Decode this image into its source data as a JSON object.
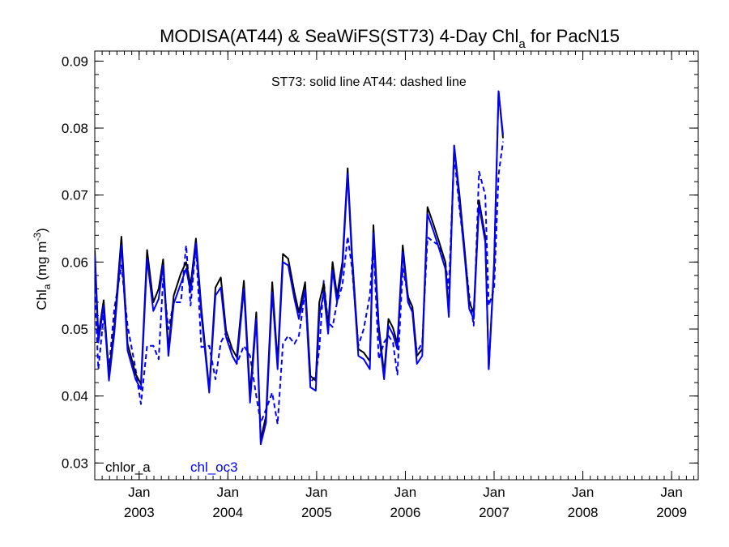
{
  "chart_data": {
    "type": "line",
    "title": "MODISA(AT44) & SeaWiFS(ST73) 4-Day Chl",
    "title_subscript": "a",
    "title_suffix": " for PacN15",
    "annotation": "ST73: solid line   AT44: dashed line",
    "ylabel": "Chl",
    "ylabel_subscript": "a",
    "ylabel_units": "(mg m",
    "ylabel_units_superscript": "-3",
    "ylabel_units_close": ")",
    "ylim": [
      0.0275,
      0.0915
    ],
    "xlim": [
      2002.5,
      2009.3
    ],
    "yticks": [
      {
        "value": 0.03,
        "label": "0.03"
      },
      {
        "value": 0.04,
        "label": "0.04"
      },
      {
        "value": 0.05,
        "label": "0.05"
      },
      {
        "value": 0.06,
        "label": "0.06"
      },
      {
        "value": 0.07,
        "label": "0.07"
      },
      {
        "value": 0.08,
        "label": "0.08"
      },
      {
        "value": 0.09,
        "label": "0.09"
      }
    ],
    "xticks": [
      {
        "value": 2003.0,
        "month": "Jan",
        "year": "2003"
      },
      {
        "value": 2004.0,
        "month": "Jan",
        "year": "2004"
      },
      {
        "value": 2005.0,
        "month": "Jan",
        "year": "2005"
      },
      {
        "value": 2006.0,
        "month": "Jan",
        "year": "2006"
      },
      {
        "value": 2007.0,
        "month": "Jan",
        "year": "2007"
      },
      {
        "value": 2008.0,
        "month": "Jan",
        "year": "2008"
      },
      {
        "value": 2009.0,
        "month": "Jan",
        "year": "2009"
      }
    ],
    "grid": false,
    "legend": [
      {
        "label": "chlor_a",
        "color": "#000000"
      },
      {
        "label": "chl_oc3",
        "color": "#0000ff"
      }
    ],
    "series": [
      {
        "name": "chlor_a",
        "sensor": "ST73",
        "color": "#000000",
        "dash": "solid",
        "points": [
          [
            2002.5,
            0.0618
          ],
          [
            2002.54,
            0.049
          ],
          [
            2002.6,
            0.0543
          ],
          [
            2002.66,
            0.0432
          ],
          [
            2002.72,
            0.0503
          ],
          [
            2002.8,
            0.0638
          ],
          [
            2002.87,
            0.0478
          ],
          [
            2002.96,
            0.0433
          ],
          [
            2003.02,
            0.0418
          ],
          [
            2003.09,
            0.0618
          ],
          [
            2003.16,
            0.054
          ],
          [
            2003.22,
            0.056
          ],
          [
            2003.27,
            0.0604
          ],
          [
            2003.33,
            0.047
          ],
          [
            2003.39,
            0.055
          ],
          [
            2003.47,
            0.0583
          ],
          [
            2003.53,
            0.06
          ],
          [
            2003.58,
            0.0565
          ],
          [
            2003.64,
            0.0635
          ],
          [
            2003.7,
            0.0532
          ],
          [
            2003.79,
            0.041
          ],
          [
            2003.86,
            0.0562
          ],
          [
            2003.92,
            0.0577
          ],
          [
            2003.98,
            0.0498
          ],
          [
            2004.05,
            0.047
          ],
          [
            2004.1,
            0.0458
          ],
          [
            2004.18,
            0.0572
          ],
          [
            2004.25,
            0.0402
          ],
          [
            2004.32,
            0.0525
          ],
          [
            2004.37,
            0.0335
          ],
          [
            2004.43,
            0.037
          ],
          [
            2004.5,
            0.057
          ],
          [
            2004.56,
            0.045
          ],
          [
            2004.62,
            0.0612
          ],
          [
            2004.68,
            0.0605
          ],
          [
            2004.75,
            0.0555
          ],
          [
            2004.8,
            0.0525
          ],
          [
            2004.87,
            0.057
          ],
          [
            2004.93,
            0.043
          ],
          [
            2004.99,
            0.0423
          ],
          [
            2005.03,
            0.054
          ],
          [
            2005.08,
            0.0568
          ],
          [
            2005.13,
            0.0505
          ],
          [
            2005.18,
            0.06
          ],
          [
            2005.23,
            0.055
          ],
          [
            2005.29,
            0.06
          ],
          [
            2005.35,
            0.074
          ],
          [
            2005.4,
            0.061
          ],
          [
            2005.47,
            0.047
          ],
          [
            2005.53,
            0.0465
          ],
          [
            2005.6,
            0.0452
          ],
          [
            2005.64,
            0.0655
          ],
          [
            2005.7,
            0.0505
          ],
          [
            2005.76,
            0.0433
          ],
          [
            2005.81,
            0.0515
          ],
          [
            2005.86,
            0.0502
          ],
          [
            2005.91,
            0.0478
          ],
          [
            2005.97,
            0.0625
          ],
          [
            2006.03,
            0.0548
          ],
          [
            2006.08,
            0.0533
          ],
          [
            2006.13,
            0.046
          ],
          [
            2006.19,
            0.047
          ],
          [
            2006.25,
            0.0682
          ],
          [
            2006.32,
            0.0655
          ],
          [
            2006.38,
            0.063
          ],
          [
            2006.45,
            0.06
          ],
          [
            2006.49,
            0.0525
          ],
          [
            2006.55,
            0.0774
          ],
          [
            2006.61,
            0.07
          ],
          [
            2006.67,
            0.0615
          ],
          [
            2006.72,
            0.054
          ],
          [
            2006.77,
            0.0525
          ],
          [
            2006.83,
            0.0692
          ],
          [
            2006.9,
            0.0638
          ],
          [
            2006.94,
            0.044
          ],
          [
            2007.0,
            0.06
          ],
          [
            2007.05,
            0.0855
          ],
          [
            2007.1,
            0.0785
          ]
        ]
      },
      {
        "name": "chl_oc3",
        "sensor": "ST73",
        "color": "#0000ff",
        "dash": "solid",
        "points": [
          [
            2002.5,
            0.061
          ],
          [
            2002.54,
            0.048
          ],
          [
            2002.6,
            0.0535
          ],
          [
            2002.66,
            0.0423
          ],
          [
            2002.72,
            0.0493
          ],
          [
            2002.8,
            0.0625
          ],
          [
            2002.87,
            0.0468
          ],
          [
            2002.96,
            0.0425
          ],
          [
            2003.02,
            0.041
          ],
          [
            2003.09,
            0.0605
          ],
          [
            2003.16,
            0.0527
          ],
          [
            2003.22,
            0.0545
          ],
          [
            2003.27,
            0.0595
          ],
          [
            2003.33,
            0.046
          ],
          [
            2003.39,
            0.0538
          ],
          [
            2003.47,
            0.0568
          ],
          [
            2003.53,
            0.059
          ],
          [
            2003.58,
            0.0555
          ],
          [
            2003.64,
            0.0628
          ],
          [
            2003.7,
            0.0522
          ],
          [
            2003.79,
            0.0405
          ],
          [
            2003.86,
            0.055
          ],
          [
            2003.92,
            0.0562
          ],
          [
            2003.98,
            0.0488
          ],
          [
            2004.05,
            0.046
          ],
          [
            2004.1,
            0.0448
          ],
          [
            2004.18,
            0.056
          ],
          [
            2004.25,
            0.039
          ],
          [
            2004.32,
            0.0515
          ],
          [
            2004.37,
            0.0328
          ],
          [
            2004.43,
            0.036
          ],
          [
            2004.5,
            0.0555
          ],
          [
            2004.56,
            0.044
          ],
          [
            2004.62,
            0.06
          ],
          [
            2004.68,
            0.0595
          ],
          [
            2004.75,
            0.0545
          ],
          [
            2004.8,
            0.0515
          ],
          [
            2004.87,
            0.0558
          ],
          [
            2004.93,
            0.0413
          ],
          [
            2004.99,
            0.0408
          ],
          [
            2005.03,
            0.052
          ],
          [
            2005.08,
            0.0555
          ],
          [
            2005.13,
            0.0493
          ],
          [
            2005.18,
            0.0588
          ],
          [
            2005.23,
            0.054
          ],
          [
            2005.29,
            0.059
          ],
          [
            2005.35,
            0.0732
          ],
          [
            2005.4,
            0.06
          ],
          [
            2005.47,
            0.046
          ],
          [
            2005.53,
            0.0455
          ],
          [
            2005.6,
            0.044
          ],
          [
            2005.64,
            0.0643
          ],
          [
            2005.7,
            0.0495
          ],
          [
            2005.76,
            0.0425
          ],
          [
            2005.81,
            0.0505
          ],
          [
            2005.86,
            0.0492
          ],
          [
            2005.91,
            0.047
          ],
          [
            2005.97,
            0.0615
          ],
          [
            2006.03,
            0.054
          ],
          [
            2006.08,
            0.0525
          ],
          [
            2006.13,
            0.0448
          ],
          [
            2006.19,
            0.046
          ],
          [
            2006.25,
            0.0672
          ],
          [
            2006.32,
            0.0645
          ],
          [
            2006.38,
            0.062
          ],
          [
            2006.45,
            0.059
          ],
          [
            2006.49,
            0.0518
          ],
          [
            2006.55,
            0.0773
          ],
          [
            2006.61,
            0.069
          ],
          [
            2006.67,
            0.0605
          ],
          [
            2006.72,
            0.053
          ],
          [
            2006.77,
            0.0515
          ],
          [
            2006.83,
            0.0685
          ],
          [
            2006.9,
            0.063
          ],
          [
            2006.94,
            0.044
          ],
          [
            2007.0,
            0.059
          ],
          [
            2007.05,
            0.0855
          ],
          [
            2007.1,
            0.079
          ]
        ]
      },
      {
        "name": "chl_oc3",
        "sensor": "AT44",
        "color": "#0000ff",
        "dash": "dashed",
        "points": [
          [
            2002.5,
            0.056
          ],
          [
            2002.54,
            0.044
          ],
          [
            2002.6,
            0.052
          ],
          [
            2002.66,
            0.044
          ],
          [
            2002.72,
            0.053
          ],
          [
            2002.8,
            0.0595
          ],
          [
            2002.87,
            0.0505
          ],
          [
            2002.96,
            0.044
          ],
          [
            2003.02,
            0.0388
          ],
          [
            2003.09,
            0.0475
          ],
          [
            2003.16,
            0.0475
          ],
          [
            2003.22,
            0.0455
          ],
          [
            2003.27,
            0.0575
          ],
          [
            2003.33,
            0.05
          ],
          [
            2003.39,
            0.054
          ],
          [
            2003.47,
            0.054
          ],
          [
            2003.53,
            0.0625
          ],
          [
            2003.58,
            0.0535
          ],
          [
            2003.64,
            0.0625
          ],
          [
            2003.7,
            0.0473
          ],
          [
            2003.79,
            0.0475
          ],
          [
            2003.86,
            0.0425
          ],
          [
            2003.92,
            0.048
          ],
          [
            2003.98,
            0.0495
          ],
          [
            2004.05,
            0.046
          ],
          [
            2004.1,
            0.0448
          ],
          [
            2004.18,
            0.0475
          ],
          [
            2004.25,
            0.046
          ],
          [
            2004.32,
            0.04
          ],
          [
            2004.37,
            0.036
          ],
          [
            2004.43,
            0.038
          ],
          [
            2004.5,
            0.0405
          ],
          [
            2004.56,
            0.0358
          ],
          [
            2004.62,
            0.0478
          ],
          [
            2004.68,
            0.049
          ],
          [
            2004.75,
            0.0478
          ],
          [
            2004.8,
            0.049
          ],
          [
            2004.87,
            0.0555
          ],
          [
            2004.93,
            0.042
          ],
          [
            2004.99,
            0.043
          ],
          [
            2005.03,
            0.047
          ],
          [
            2005.08,
            0.0572
          ],
          [
            2005.13,
            0.051
          ],
          [
            2005.18,
            0.0503
          ],
          [
            2005.23,
            0.054
          ],
          [
            2005.29,
            0.0565
          ],
          [
            2005.35,
            0.0638
          ],
          [
            2005.4,
            0.059
          ],
          [
            2005.47,
            0.0475
          ],
          [
            2005.53,
            0.05
          ],
          [
            2005.6,
            0.055
          ],
          [
            2005.64,
            0.063
          ],
          [
            2005.7,
            0.0455
          ],
          [
            2005.76,
            0.048
          ],
          [
            2005.81,
            0.049
          ],
          [
            2005.86,
            0.048
          ],
          [
            2005.91,
            0.0432
          ],
          [
            2005.97,
            0.059
          ],
          [
            2006.03,
            0.055
          ],
          [
            2006.08,
            0.0525
          ],
          [
            2006.13,
            0.0465
          ],
          [
            2006.19,
            0.048
          ],
          [
            2006.25,
            0.0637
          ],
          [
            2006.32,
            0.063
          ],
          [
            2006.38,
            0.0625
          ],
          [
            2006.45,
            0.06
          ],
          [
            2006.49,
            0.056
          ],
          [
            2006.55,
            0.076
          ],
          [
            2006.61,
            0.068
          ],
          [
            2006.67,
            0.061
          ],
          [
            2006.72,
            0.055
          ],
          [
            2006.77,
            0.0505
          ],
          [
            2006.83,
            0.0735
          ],
          [
            2006.9,
            0.07
          ],
          [
            2006.94,
            0.0535
          ],
          [
            2007.0,
            0.056
          ],
          [
            2007.05,
            0.073
          ],
          [
            2007.1,
            0.078
          ]
        ]
      }
    ]
  }
}
